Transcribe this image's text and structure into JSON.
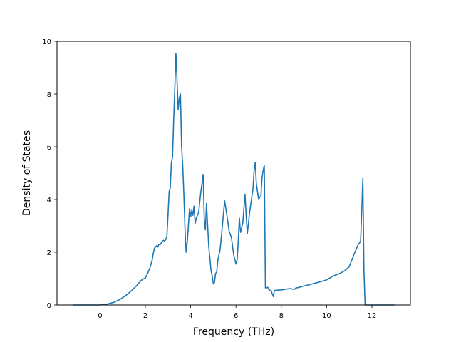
{
  "chart_data": {
    "type": "line",
    "title": "",
    "xlabel": "Frequency (THz)",
    "ylabel": "Density of States",
    "xlim": [
      -1.9,
      13.7
    ],
    "ylim": [
      0,
      10
    ],
    "xticks": [
      0,
      2,
      4,
      6,
      8,
      10,
      12
    ],
    "yticks": [
      0,
      2,
      4,
      6,
      8,
      10
    ],
    "grid": false,
    "legend": "none",
    "series": [
      {
        "color": "#1f77b4",
        "x": [
          -1.2,
          -1.0,
          -0.5,
          0.0,
          0.3,
          0.6,
          0.9,
          1.2,
          1.4,
          1.6,
          1.8,
          1.9,
          2.0,
          2.1,
          2.2,
          2.3,
          2.35,
          2.4,
          2.45,
          2.5,
          2.55,
          2.6,
          2.65,
          2.7,
          2.75,
          2.8,
          2.85,
          2.9,
          2.95,
          3.0,
          3.05,
          3.1,
          3.15,
          3.2,
          3.25,
          3.3,
          3.35,
          3.4,
          3.45,
          3.5,
          3.55,
          3.6,
          3.65,
          3.7,
          3.75,
          3.8,
          3.85,
          3.9,
          3.95,
          4.0,
          4.05,
          4.1,
          4.15,
          4.2,
          4.25,
          4.3,
          4.35,
          4.4,
          4.45,
          4.5,
          4.55,
          4.6,
          4.65,
          4.7,
          4.75,
          4.8,
          4.85,
          4.9,
          4.95,
          5.0,
          5.05,
          5.1,
          5.15,
          5.2,
          5.3,
          5.4,
          5.5,
          5.6,
          5.7,
          5.8,
          5.9,
          6.0,
          6.05,
          6.1,
          6.15,
          6.2,
          6.3,
          6.4,
          6.45,
          6.5,
          6.55,
          6.6,
          6.65,
          6.7,
          6.75,
          6.8,
          6.85,
          6.9,
          6.95,
          7.0,
          7.05,
          7.1,
          7.15,
          7.2,
          7.25,
          7.3,
          7.35,
          7.4,
          7.45,
          7.5,
          7.55,
          7.6,
          7.65,
          7.7,
          7.8,
          8.0,
          8.2,
          8.4,
          8.5,
          8.6,
          8.65,
          8.7,
          9.0,
          9.3,
          9.6,
          10.0,
          10.3,
          10.6,
          10.8,
          11.0,
          11.2,
          11.4,
          11.5,
          11.55,
          11.6,
          11.65,
          11.7,
          11.75,
          11.8,
          11.85,
          12.0,
          12.5,
          13.0
        ],
        "y": [
          0.0,
          0.0,
          0.0,
          0.0,
          0.03,
          0.1,
          0.22,
          0.4,
          0.55,
          0.72,
          0.92,
          0.98,
          1.02,
          1.2,
          1.4,
          1.7,
          1.95,
          2.15,
          2.2,
          2.25,
          2.2,
          2.3,
          2.28,
          2.35,
          2.42,
          2.45,
          2.42,
          2.48,
          2.6,
          3.4,
          4.3,
          4.45,
          5.4,
          5.6,
          7.0,
          8.2,
          9.55,
          8.5,
          7.4,
          7.85,
          8.0,
          6.0,
          5.3,
          4.2,
          2.9,
          2.0,
          2.4,
          3.0,
          3.65,
          3.35,
          3.6,
          3.4,
          3.75,
          3.1,
          3.3,
          3.4,
          3.5,
          3.9,
          4.3,
          4.6,
          4.95,
          3.3,
          2.85,
          3.85,
          3.0,
          2.2,
          1.75,
          1.3,
          1.1,
          0.8,
          0.85,
          1.2,
          1.25,
          1.7,
          2.1,
          3.0,
          3.95,
          3.4,
          2.8,
          2.55,
          1.9,
          1.55,
          1.7,
          2.4,
          3.3,
          2.75,
          3.1,
          4.2,
          3.4,
          2.7,
          3.1,
          3.5,
          3.8,
          4.1,
          4.4,
          5.1,
          5.4,
          4.6,
          4.3,
          4.0,
          4.1,
          4.1,
          4.8,
          5.1,
          5.3,
          0.65,
          0.65,
          0.67,
          0.6,
          0.55,
          0.55,
          0.42,
          0.32,
          0.55,
          0.56,
          0.57,
          0.6,
          0.62,
          0.6,
          0.6,
          0.65,
          0.65,
          0.72,
          0.78,
          0.85,
          0.95,
          1.1,
          1.2,
          1.3,
          1.45,
          1.9,
          2.3,
          2.4,
          3.5,
          4.8,
          1.3,
          0.0,
          0.0,
          0.0,
          0.0,
          0.0,
          0.0,
          0.0
        ]
      }
    ]
  }
}
